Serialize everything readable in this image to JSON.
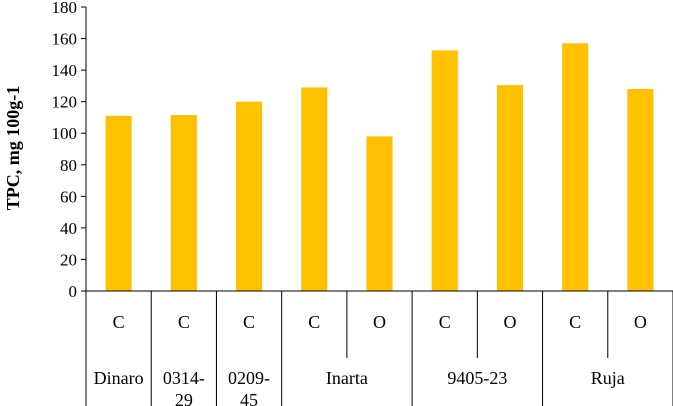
{
  "chart_data": {
    "type": "bar",
    "ylabel": "TPC, mg 100g-1",
    "ylim": [
      0,
      180
    ],
    "y_ticks": [
      "0",
      "20",
      "40",
      "60",
      "80",
      "100",
      "120",
      "140",
      "160",
      "180"
    ],
    "bar_color": "#FFC000",
    "categories": [
      {
        "code": "C",
        "group": "Dinaro",
        "value": 111
      },
      {
        "code": "C",
        "group": "0314-29",
        "value": 111.5
      },
      {
        "code": "C",
        "group": "0209-45",
        "value": 120
      },
      {
        "code": "C",
        "group": "Inarta",
        "value": 129
      },
      {
        "code": "O",
        "group": "Inarta",
        "value": 98
      },
      {
        "code": "C",
        "group": "9405-23",
        "value": 152.5
      },
      {
        "code": "O",
        "group": "9405-23",
        "value": 130.5
      },
      {
        "code": "C",
        "group": "Ruja",
        "value": 157
      },
      {
        "code": "O",
        "group": "Ruja",
        "value": 128
      }
    ],
    "groups": [
      {
        "label": "Dinaro",
        "span": 1
      },
      {
        "label": "0314-29",
        "span": 1
      },
      {
        "label": "0209-45",
        "span": 1
      },
      {
        "label": "Inarta",
        "span": 2
      },
      {
        "label": "9405-23",
        "span": 2
      },
      {
        "label": "Ruja",
        "span": 2
      }
    ]
  }
}
